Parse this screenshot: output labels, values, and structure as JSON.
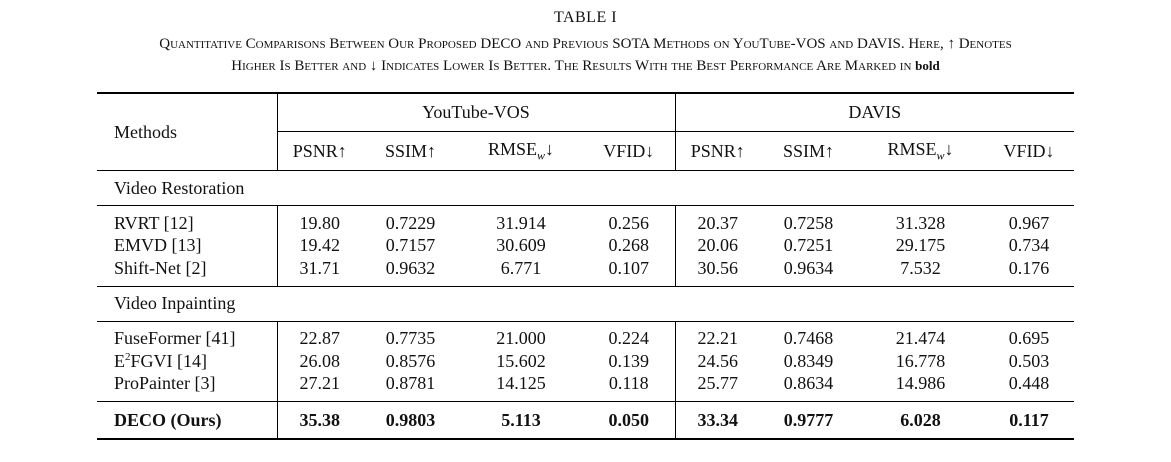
{
  "table_label": "TABLE I",
  "caption_line1": "Quantitative Comparisons Between Our Proposed DECO and Previous SOTA Methods on YouTube-VOS and DAVIS. Here, ↑ Denotes",
  "caption_line2_prefix": "Higher Is Better and ↓ Indicates Lower Is Better. The Results With the Best Performance Are Marked in",
  "caption_bold_word": "bold",
  "header": {
    "methods": "Methods",
    "group_youtube": "YouTube-VOS",
    "group_davis": "DAVIS",
    "psnr": "PSNR↑",
    "ssim": "SSIM↑",
    "rmse_base": "RMSE",
    "rmse_sub": "w",
    "rmse_arrow": "↓",
    "vfid": "VFID↓"
  },
  "sections": {
    "restoration": "Video Restoration",
    "inpainting": "Video Inpainting"
  },
  "rows": [
    {
      "name": "RVRT [12]",
      "yt": [
        "19.80",
        "0.7229",
        "31.914",
        "0.256"
      ],
      "dv": [
        "20.37",
        "0.7258",
        "31.328",
        "0.967"
      ]
    },
    {
      "name": "EMVD [13]",
      "yt": [
        "19.42",
        "0.7157",
        "30.609",
        "0.268"
      ],
      "dv": [
        "20.06",
        "0.7251",
        "29.175",
        "0.734"
      ]
    },
    {
      "name": "Shift-Net [2]",
      "yt": [
        "31.71",
        "0.9632",
        "6.771",
        "0.107"
      ],
      "dv": [
        "30.56",
        "0.9634",
        "7.532",
        "0.176"
      ]
    },
    {
      "name": "FuseFormer [41]",
      "yt": [
        "22.87",
        "0.7735",
        "21.000",
        "0.224"
      ],
      "dv": [
        "22.21",
        "0.7468",
        "21.474",
        "0.695"
      ]
    },
    {
      "name_pre": "E",
      "name_sup": "2",
      "name_post": "FGVI [14]",
      "yt": [
        "26.08",
        "0.8576",
        "15.602",
        "0.139"
      ],
      "dv": [
        "24.56",
        "0.8349",
        "16.778",
        "0.503"
      ]
    },
    {
      "name": "ProPainter [3]",
      "yt": [
        "27.21",
        "0.8781",
        "14.125",
        "0.118"
      ],
      "dv": [
        "25.77",
        "0.8634",
        "14.986",
        "0.448"
      ]
    },
    {
      "name": "DECO (Ours)",
      "yt": [
        "35.38",
        "0.9803",
        "5.113",
        "0.050"
      ],
      "dv": [
        "33.34",
        "0.9777",
        "6.028",
        "0.117"
      ]
    }
  ]
}
